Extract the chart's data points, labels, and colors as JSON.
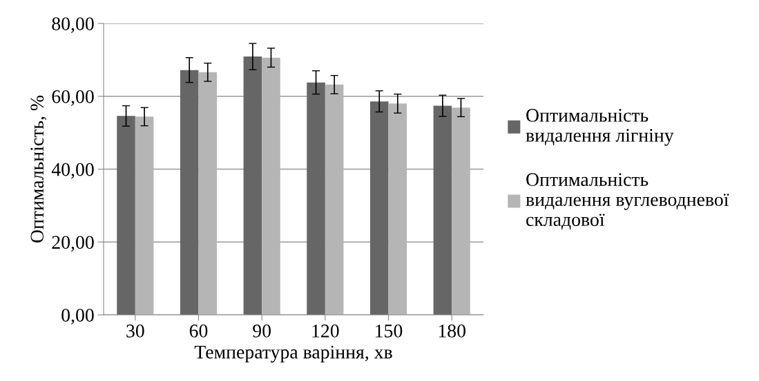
{
  "chart_data": {
    "type": "bar",
    "xlabel": "Температура варіння, хв",
    "ylabel": "Оптимальність, %",
    "categories": [
      "30",
      "60",
      "90",
      "120",
      "150",
      "180"
    ],
    "series": [
      {
        "name": "Оптимальність видалення лігніну",
        "color": "#666666",
        "values": [
          54.6,
          67.2,
          70.9,
          63.8,
          58.6,
          57.4
        ],
        "errors": [
          2.8,
          3.4,
          3.6,
          3.2,
          2.9,
          2.9
        ]
      },
      {
        "name": "Оптимальність видалення вуглеводневої складової",
        "color": "#b5b5b5",
        "values": [
          54.4,
          66.6,
          70.6,
          63.2,
          58.0,
          56.9
        ],
        "errors": [
          2.5,
          2.5,
          2.6,
          2.5,
          2.6,
          2.5
        ]
      }
    ],
    "ylim": [
      0,
      80
    ],
    "yticks": [
      {
        "value": 0,
        "label": "0,00"
      },
      {
        "value": 20,
        "label": "20,00"
      },
      {
        "value": 40,
        "label": "40,00"
      },
      {
        "value": 60,
        "label": "60,00"
      },
      {
        "value": 80,
        "label": "80,00"
      }
    ],
    "grid": "y",
    "legend": "right"
  }
}
